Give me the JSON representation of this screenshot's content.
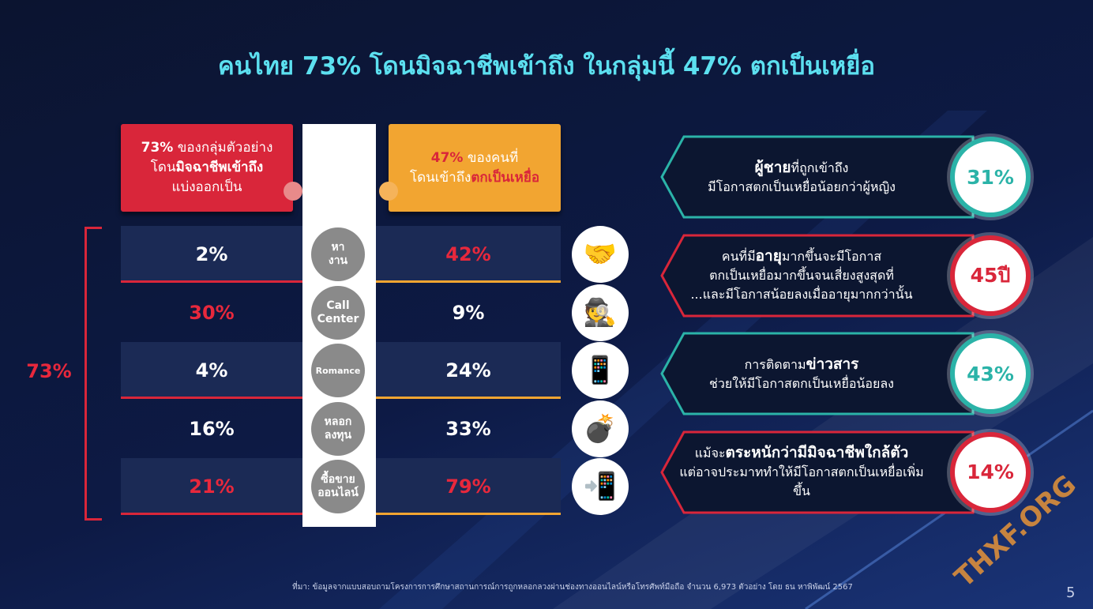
{
  "title": "คนไทย 73% โดนมิจฉาชีพเข้าถึง ในกลุ่มนี้ 47% ตกเป็นเหยื่อ",
  "left_header": {
    "color": "#d9263a",
    "lines": [
      [
        {
          "text": "73%",
          "style": "strong"
        },
        " ของกลุ่มตัวอย่าง"
      ],
      [
        "โดน",
        {
          "text": "มิจฉาชีพเข้าถึง",
          "style": "strong"
        }
      ],
      [
        "แบ่งออกเป็น"
      ]
    ]
  },
  "right_header": {
    "color": "#f2a531",
    "lines": [
      [
        {
          "text": "47%",
          "style": "strong"
        },
        " ของคนที่"
      ],
      [
        "โดนเข้าถึง",
        {
          "text": "ตกเป็นเหยื่อ",
          "style": "strong"
        }
      ]
    ]
  },
  "total": "73%",
  "rows": [
    {
      "left": "2%",
      "left_color": "#ffffff",
      "category": [
        "หา",
        "งาน"
      ],
      "right": "42%",
      "right_color": "#e8283c"
    },
    {
      "left": "30%",
      "left_color": "#e8283c",
      "category": [
        "Call",
        "Center"
      ],
      "right": "9%",
      "right_color": "#ffffff"
    },
    {
      "left": "4%",
      "left_color": "#ffffff",
      "category": [
        "Romance"
      ],
      "right": "24%",
      "right_color": "#ffffff"
    },
    {
      "left": "16%",
      "left_color": "#ffffff",
      "category": [
        "หลอก",
        "ลงทุน"
      ],
      "right": "33%",
      "right_color": "#ffffff"
    },
    {
      "left": "21%",
      "left_color": "#e8283c",
      "category": [
        "ซื้อขาย",
        "ออนไลน์"
      ],
      "right": "79%",
      "right_color": "#e8283c"
    }
  ],
  "insights": [
    {
      "color": "#2bb3a8",
      "badge": "31%",
      "lines": [
        [
          {
            "text": "ผู้ชาย",
            "style": "strong"
          },
          "ที่ถูกเข้าถึง"
        ],
        [
          "มีโอกาสตกเป็นเหยื่อน้อยกว่าผู้หญิง"
        ]
      ]
    },
    {
      "color": "#d9263a",
      "badge": "45ปี",
      "lines": [
        [
          "คนที่มี",
          {
            "text": "อายุ",
            "style": "strong"
          },
          "มากขึ้นจะมีโอกาส"
        ],
        [
          "ตกเป็นเหยื่อมากขึ้นจนเสี่ยงสูงสุดที่"
        ],
        [
          "...และมีโอกาสน้อยลงเมื่ออายุมากกว่านั้น"
        ]
      ]
    },
    {
      "color": "#2bb3a8",
      "badge": "43%",
      "lines": [
        [
          "การติดตาม",
          {
            "text": "ข่าวสาร",
            "style": "strong"
          }
        ],
        [
          "ช่วยให้มีโอกาสตกเป็นเหยื่อน้อยลง"
        ]
      ]
    },
    {
      "color": "#d9263a",
      "badge": "14%",
      "lines": [
        [
          "แม้จะ",
          {
            "text": "ตระหนักว่ามีมิจฉาชีพใกล้ตัว",
            "style": "strong"
          }
        ],
        [
          "แต่อาจประมาททำให้มีโอกาสตกเป็นเหยื่อเพิ่มขึ้น"
        ]
      ]
    }
  ],
  "source": "ที่มา: ข้อมูลจากแบบสอบถามโครงการการศึกษาสถานการณ์การถูกหลอกลวงผ่านช่องทางออนไลน์หรือโทรศัพท์มือถือ จำนวน 6,973 ตัวอย่าง โดย ธน หาพิพัฒน์ 2567",
  "page_number": "5",
  "watermark": "THXF.ORG"
}
